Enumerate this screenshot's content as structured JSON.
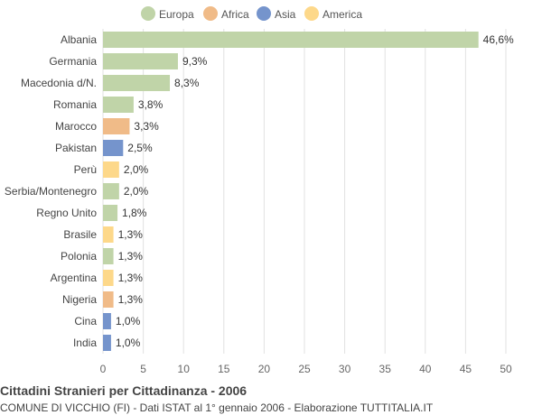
{
  "chart_data": {
    "type": "bar",
    "orientation": "horizontal",
    "title": "Cittadini Stranieri per Cittadinanza - 2006",
    "subtitle": "COMUNE DI VICCHIO (FI) - Dati ISTAT al 1° gennaio 2006 - Elaborazione TUTTITALIA.IT",
    "legend": {
      "placement": "top",
      "entries": [
        {
          "name": "Europa",
          "color": "#c0d4a8"
        },
        {
          "name": "Africa",
          "color": "#f0bb88"
        },
        {
          "name": "Asia",
          "color": "#7594cc"
        },
        {
          "name": "America",
          "color": "#fdd88a"
        }
      ]
    },
    "categories": [
      "Albania",
      "Germania",
      "Macedonia d/N.",
      "Romania",
      "Marocco",
      "Pakistan",
      "Perù",
      "Serbia/Montenegro",
      "Regno Unito",
      "Brasile",
      "Polonia",
      "Argentina",
      "Nigeria",
      "Cina",
      "India"
    ],
    "values": [
      46.6,
      9.3,
      8.3,
      3.8,
      3.3,
      2.5,
      2.0,
      2.0,
      1.8,
      1.3,
      1.3,
      1.3,
      1.3,
      1.0,
      1.0
    ],
    "value_labels": [
      "46,6%",
      "9,3%",
      "8,3%",
      "3,8%",
      "3,3%",
      "2,5%",
      "2,0%",
      "2,0%",
      "1,8%",
      "1,3%",
      "1,3%",
      "1,3%",
      "1,3%",
      "1,0%",
      "1,0%"
    ],
    "groups": [
      "Europa",
      "Europa",
      "Europa",
      "Europa",
      "Africa",
      "Asia",
      "America",
      "Europa",
      "Europa",
      "America",
      "Europa",
      "America",
      "Africa",
      "Asia",
      "Asia"
    ],
    "xlim": [
      0,
      50
    ],
    "xticks": [
      0,
      5,
      10,
      15,
      20,
      25,
      30,
      35,
      40,
      45,
      50
    ],
    "grid": true
  }
}
